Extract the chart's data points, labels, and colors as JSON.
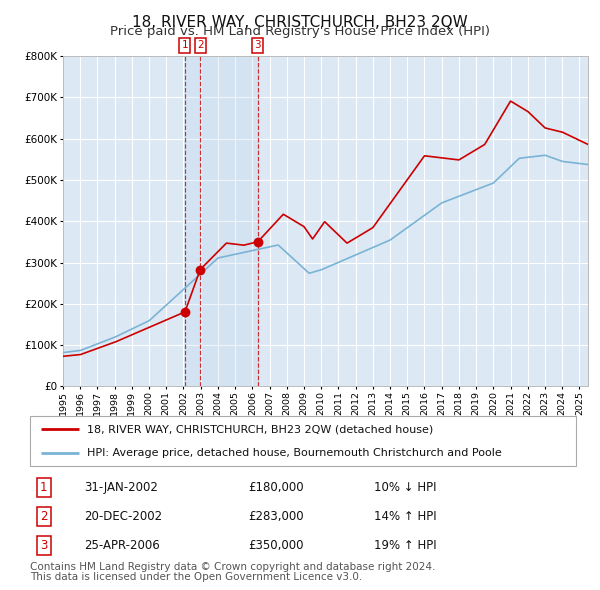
{
  "title": "18, RIVER WAY, CHRISTCHURCH, BH23 2QW",
  "subtitle": "Price paid vs. HM Land Registry's House Price Index (HPI)",
  "legend_line1": "18, RIVER WAY, CHRISTCHURCH, BH23 2QW (detached house)",
  "legend_line2": "HPI: Average price, detached house, Bournemouth Christchurch and Poole",
  "footer1": "Contains HM Land Registry data © Crown copyright and database right 2024.",
  "footer2": "This data is licensed under the Open Government Licence v3.0.",
  "transactions": [
    {
      "num": 1,
      "date": "31-JAN-2002",
      "price": 180000,
      "pct": "10%",
      "dir": "↓"
    },
    {
      "num": 2,
      "date": "20-DEC-2002",
      "price": 283000,
      "pct": "14%",
      "dir": "↑"
    },
    {
      "num": 3,
      "date": "25-APR-2006",
      "price": 350000,
      "pct": "19%",
      "dir": "↑"
    }
  ],
  "transaction_dates_decimal": [
    2002.08,
    2002.97,
    2006.31
  ],
  "transaction_prices": [
    180000,
    283000,
    350000
  ],
  "hpi_color": "#7ab3d4",
  "price_color": "#cc0000",
  "vline_color": "#cc0000",
  "bg_color": "#dce9f5",
  "grid_color": "#ffffff",
  "ylim": [
    0,
    800000
  ],
  "xlim_start": 1995.0,
  "xlim_end": 2025.5,
  "title_fontsize": 11,
  "subtitle_fontsize": 9.5,
  "note_fontsize": 7.5,
  "legend_fontsize": 8,
  "table_fontsize": 8.5
}
